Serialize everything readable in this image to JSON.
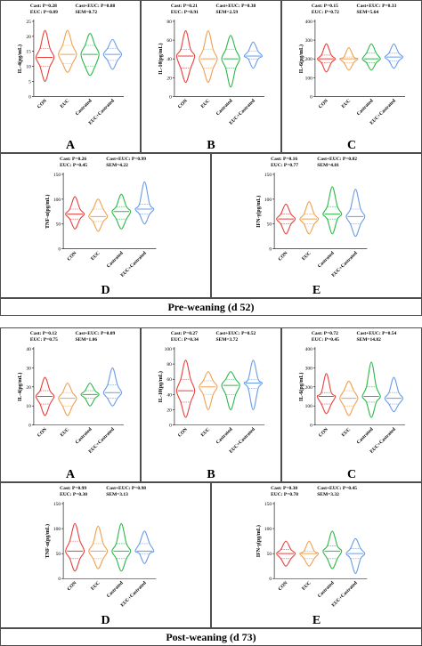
{
  "sections": [
    {
      "title": "Pre-weaning (d 52)"
    },
    {
      "title": "Post-weaning (d 73)"
    }
  ],
  "chart_data": [
    {
      "type": "violin",
      "panel": "A",
      "y_label": "IL-4(pg/mL)",
      "stats": [
        [
          "Cast: P=0.28",
          "Cast+EUC: P=0.88"
        ],
        [
          "EUC: P=0.89",
          "SEM=0.72"
        ]
      ],
      "categories": [
        "CON",
        "EUC",
        "Castrated",
        "EUC+Castrated"
      ],
      "colors": [
        "#e8413c",
        "#f0a050",
        "#2db84a",
        "#6a9be8"
      ],
      "ylim": [
        0,
        25
      ],
      "yticks": [
        0,
        5,
        10,
        15,
        20,
        25
      ],
      "values": [
        13,
        14,
        14,
        14
      ],
      "q1": [
        10,
        11,
        10,
        12
      ],
      "q3": [
        16,
        17,
        17,
        16
      ],
      "min": [
        5,
        8,
        7,
        9
      ],
      "max": [
        22,
        22,
        21,
        19
      ]
    },
    {
      "type": "violin",
      "panel": "B",
      "y_label": "IL-10(pg/mL)",
      "stats": [
        [
          "Cast: P=0.21",
          "Cast+EUC: P=0.38"
        ],
        [
          "EUC: P=0.91",
          "SEM=2.59"
        ]
      ],
      "categories": [
        "CON",
        "EUC",
        "Castrated",
        "EUC+Castrated"
      ],
      "colors": [
        "#e8413c",
        "#f0a050",
        "#2db84a",
        "#6a9be8"
      ],
      "ylim": [
        0,
        80
      ],
      "yticks": [
        0,
        20,
        40,
        60,
        80
      ],
      "values": [
        43,
        40,
        40,
        43
      ],
      "q1": [
        30,
        30,
        30,
        40
      ],
      "q3": [
        50,
        50,
        50,
        48
      ],
      "min": [
        15,
        15,
        10,
        30
      ],
      "max": [
        70,
        70,
        65,
        58
      ]
    },
    {
      "type": "violin",
      "panel": "C",
      "y_label": "IL-6(pg/mL)",
      "stats": [
        [
          "Cast: P=0.15",
          "Cast+EUC: P=0.33"
        ],
        [
          "EUC: P=0.72",
          "SEM=5.64"
        ]
      ],
      "categories": [
        "CON",
        "EUC",
        "Castrated",
        "EUC+Castrated"
      ],
      "colors": [
        "#e8413c",
        "#f0a050",
        "#2db84a",
        "#6a9be8"
      ],
      "ylim": [
        0,
        400
      ],
      "yticks": [
        0,
        100,
        200,
        300,
        400
      ],
      "values": [
        200,
        200,
        200,
        210
      ],
      "q1": [
        180,
        180,
        180,
        190
      ],
      "q3": [
        220,
        210,
        230,
        230
      ],
      "min": [
        130,
        140,
        140,
        150
      ],
      "max": [
        280,
        260,
        280,
        280
      ]
    },
    {
      "type": "violin",
      "panel": "D",
      "y_label": "TNF-α(pg/mL)",
      "stats": [
        [
          "Cast: P=0.26",
          "Cast+EUC: P=0.99"
        ],
        [
          "EUC: P=0.45",
          "SEM=4.22"
        ]
      ],
      "categories": [
        "CON",
        "EUC",
        "Castrated",
        "EUC+Castrated"
      ],
      "colors": [
        "#e8413c",
        "#f0a050",
        "#2db84a",
        "#6a9be8"
      ],
      "ylim": [
        0,
        150
      ],
      "yticks": [
        0,
        50,
        100,
        150
      ],
      "values": [
        70,
        65,
        75,
        80
      ],
      "q1": [
        60,
        55,
        60,
        70
      ],
      "q3": [
        80,
        80,
        85,
        90
      ],
      "min": [
        40,
        35,
        40,
        50
      ],
      "max": [
        105,
        100,
        110,
        135
      ]
    },
    {
      "type": "violin",
      "panel": "E",
      "y_label": "IFN-γ(pg/mL)",
      "stats": [
        [
          "Cast: P=0.16",
          "Cast+EUC: P=0.82"
        ],
        [
          "EUC: P=0.77",
          "SEM=4.81"
        ]
      ],
      "categories": [
        "CON",
        "EUC",
        "Castrated",
        "EUC+Castrated"
      ],
      "colors": [
        "#e8413c",
        "#f0a050",
        "#2db84a",
        "#6a9be8"
      ],
      "ylim": [
        0,
        150
      ],
      "yticks": [
        0,
        50,
        100,
        150
      ],
      "values": [
        60,
        60,
        70,
        65
      ],
      "q1": [
        50,
        50,
        60,
        50
      ],
      "q3": [
        70,
        70,
        85,
        80
      ],
      "min": [
        30,
        30,
        30,
        25
      ],
      "max": [
        90,
        95,
        125,
        120
      ]
    },
    {
      "type": "violin",
      "panel": "A",
      "y_label": "IL-4(pg/mL)",
      "stats": [
        [
          "Cast: P=0.12",
          "Cast+EUC: P=0.09"
        ],
        [
          "EUC: P=0.75",
          "SEM=1.06"
        ]
      ],
      "categories": [
        "CON",
        "EUC",
        "Castrated",
        "EUC+Castrated"
      ],
      "colors": [
        "#e8413c",
        "#f0a050",
        "#2db84a",
        "#6a9be8"
      ],
      "ylim": [
        0,
        40
      ],
      "yticks": [
        0,
        10,
        20,
        30,
        40
      ],
      "values": [
        15,
        14,
        16,
        17
      ],
      "q1": [
        11,
        10,
        14,
        14
      ],
      "q3": [
        18,
        17,
        18,
        21
      ],
      "min": [
        5,
        5,
        10,
        10
      ],
      "max": [
        25,
        22,
        22,
        30
      ]
    },
    {
      "type": "violin",
      "panel": "B",
      "y_label": "IL-10(pg/mL)",
      "stats": [
        [
          "Cast: P=0.27",
          "Cast+EUC: P=0.52"
        ],
        [
          "EUC: P=0.34",
          "SEM=3.72"
        ]
      ],
      "categories": [
        "CON",
        "EUC",
        "Castrated",
        "EUC+Castrated"
      ],
      "colors": [
        "#e8413c",
        "#f0a050",
        "#2db84a",
        "#6a9be8"
      ],
      "ylim": [
        0,
        100
      ],
      "yticks": [
        0,
        20,
        40,
        60,
        80,
        100
      ],
      "values": [
        45,
        50,
        52,
        55
      ],
      "q1": [
        30,
        40,
        40,
        48
      ],
      "q3": [
        60,
        58,
        60,
        60
      ],
      "min": [
        10,
        20,
        20,
        20
      ],
      "max": [
        85,
        70,
        70,
        85
      ]
    },
    {
      "type": "violin",
      "panel": "C",
      "y_label": "IL-6(pg/mL)",
      "stats": [
        [
          "Cast: P=0.72",
          "Cast+EUC: P=0.54"
        ],
        [
          "EUC: P=0.45",
          "SEM=14.82"
        ]
      ],
      "categories": [
        "CON",
        "EUC",
        "Castrated",
        "EUC+Castrated"
      ],
      "colors": [
        "#e8413c",
        "#f0a050",
        "#2db84a",
        "#6a9be8"
      ],
      "ylim": [
        0,
        400
      ],
      "yticks": [
        0,
        100,
        200,
        300,
        400
      ],
      "values": [
        150,
        140,
        150,
        140
      ],
      "q1": [
        110,
        100,
        120,
        110
      ],
      "q3": [
        170,
        180,
        200,
        170
      ],
      "min": [
        60,
        50,
        40,
        70
      ],
      "max": [
        270,
        230,
        330,
        250
      ]
    },
    {
      "type": "violin",
      "panel": "D",
      "y_label": "TNF-α(pg/mL)",
      "stats": [
        [
          "Cast: P=0.99",
          "Cast+EUC: P=0.98"
        ],
        [
          "EUC: P=0.30",
          "SEM=3.13"
        ]
      ],
      "categories": [
        "CON",
        "EUC",
        "Castrated",
        "EUC+Castrated"
      ],
      "colors": [
        "#e8413c",
        "#f0a050",
        "#2db84a",
        "#6a9be8"
      ],
      "ylim": [
        0,
        150
      ],
      "yticks": [
        0,
        50,
        100,
        150
      ],
      "values": [
        55,
        55,
        55,
        55
      ],
      "q1": [
        40,
        40,
        40,
        50
      ],
      "q3": [
        75,
        70,
        70,
        70
      ],
      "min": [
        15,
        20,
        15,
        30
      ],
      "max": [
        110,
        105,
        110,
        95
      ]
    },
    {
      "type": "violin",
      "panel": "E",
      "y_label": "IFN-γ(pg/mL)",
      "stats": [
        [
          "Cast: P=0.38",
          "Cast+EUC: P=0.45"
        ],
        [
          "EUC: P=0.78",
          "SEM=3.32"
        ]
      ],
      "categories": [
        "CON",
        "EUC",
        "Castrated",
        "EUC+Castrated"
      ],
      "colors": [
        "#e8413c",
        "#f0a050",
        "#2db84a",
        "#6a9be8"
      ],
      "ylim": [
        0,
        150
      ],
      "yticks": [
        0,
        50,
        100,
        150
      ],
      "values": [
        50,
        50,
        55,
        50
      ],
      "q1": [
        40,
        40,
        40,
        40
      ],
      "q3": [
        58,
        55,
        65,
        60
      ],
      "min": [
        25,
        25,
        20,
        10
      ],
      "max": [
        75,
        75,
        95,
        80
      ]
    }
  ]
}
